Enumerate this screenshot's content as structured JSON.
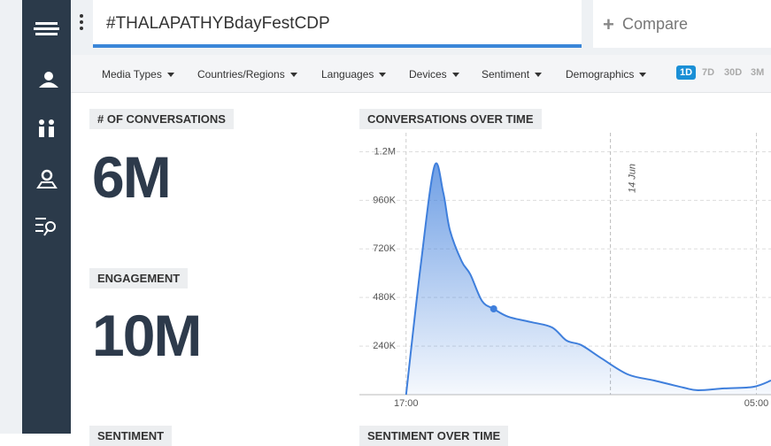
{
  "search": {
    "query": "#THALAPATHYBdayFestCDP",
    "compare": "Compare"
  },
  "filters": [
    "Media Types",
    "Countries/Regions",
    "Languages",
    "Devices",
    "Sentiment",
    "Demographics"
  ],
  "time_ranges": {
    "options": [
      "1D",
      "7D",
      "30D",
      "3M"
    ],
    "selected": 0
  },
  "metrics": [
    {
      "label": "# OF CONVERSATIONS",
      "value": "6M"
    },
    {
      "label": "ENGAGEMENT",
      "value": "10M"
    }
  ],
  "lower_sections": [
    "SENTIMENT",
    "SENTIMENT OVER TIME"
  ],
  "chart_data": {
    "type": "area",
    "title": "CONVERSATIONS OVER TIME",
    "color": "#3f7fdc",
    "x": [
      0,
      0.5,
      0.97,
      1.27,
      1.5,
      1.9,
      2.2,
      2.6,
      3.0,
      3.5,
      4.3,
      5.0,
      5.5,
      6.0,
      6.7,
      7.6,
      8.5,
      9.5,
      10,
      10.9,
      11.9,
      12.5
    ],
    "values": [
      0,
      638000,
      1128000,
      1000000,
      813000,
      660000,
      594000,
      463000,
      424000,
      385000,
      358000,
      332000,
      267000,
      245000,
      179000,
      100000,
      70000,
      35000,
      22000,
      31000,
      39000,
      70000
    ],
    "highlight_index": 8,
    "xlim": [
      -1.6,
      12.5
    ],
    "xticks": [
      {
        "value": 0,
        "label": "17:00"
      },
      {
        "value": 12,
        "label": "05:00"
      }
    ],
    "annotations": [
      {
        "x": 7,
        "text": "14 Jun"
      }
    ],
    "ylim": [
      0,
      1250000
    ],
    "yticks": [
      {
        "value": 240000,
        "label": "240K"
      },
      {
        "value": 480000,
        "label": "480K"
      },
      {
        "value": 720000,
        "label": "720K"
      },
      {
        "value": 960000,
        "label": "960K"
      },
      {
        "value": 1200000,
        "label": "1.2M"
      }
    ],
    "grid": true
  }
}
